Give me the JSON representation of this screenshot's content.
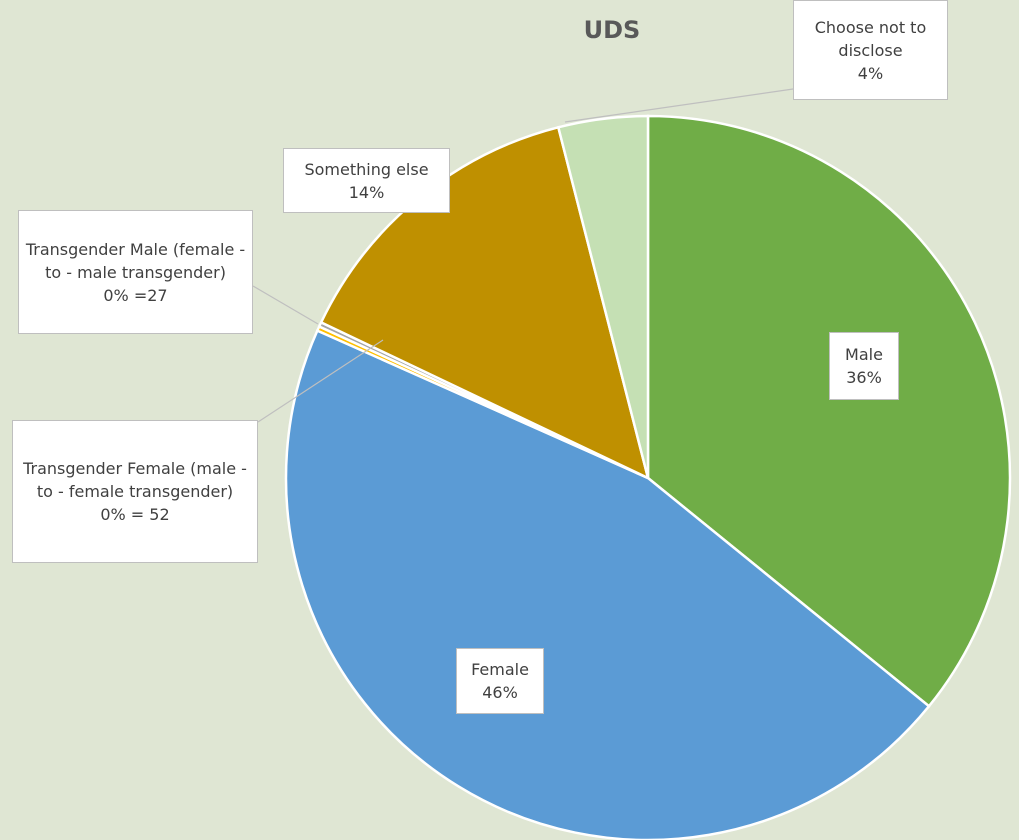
{
  "chart_data": {
    "type": "pie",
    "title": "UDS",
    "categories": [
      "Male",
      "Female",
      "Transgender Female (male - to - female transgender)",
      "Transgender Male (female - to - male transgender)",
      "Something else",
      "Choose not to disclose"
    ],
    "values": [
      36,
      46,
      0.2,
      0.2,
      14,
      4
    ],
    "value_labels": [
      "36%",
      "46%",
      "0% = 52",
      "0% =27",
      "14%",
      "4%"
    ],
    "colors": [
      "#70ad47",
      "#5b9bd5",
      "#ffc000",
      "#a5a5a5",
      "#bf9000",
      "#c5e0b4"
    ]
  }
}
